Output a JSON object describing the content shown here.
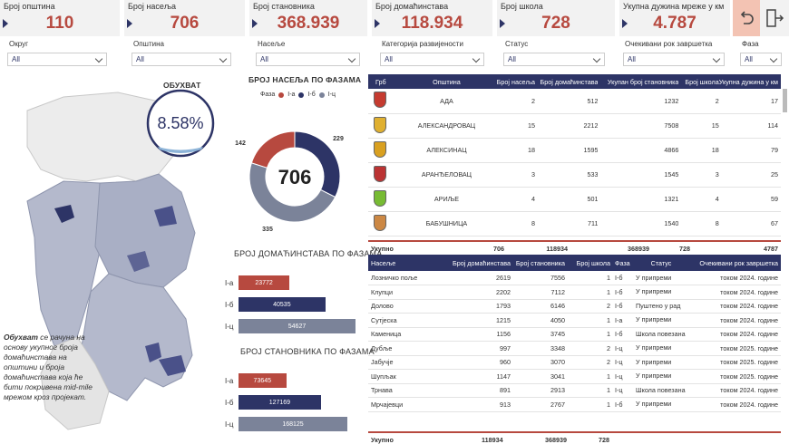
{
  "kpis": [
    {
      "label": "Број општина",
      "value": "110"
    },
    {
      "label": "Број насеља",
      "value": "706"
    },
    {
      "label": "Број становника",
      "value": "368.939"
    },
    {
      "label": "Број домаћинстава",
      "value": "118.934"
    },
    {
      "label": "Број школа",
      "value": "728"
    },
    {
      "label": "Укупна дужина мреже у км",
      "value": "4.787"
    }
  ],
  "slicers": [
    {
      "label": "Округ",
      "value": "All"
    },
    {
      "label": "Општина",
      "value": "All"
    },
    {
      "label": "Насеље",
      "value": "All"
    },
    {
      "label": "Категорија развијености",
      "value": "All"
    },
    {
      "label": "Статус",
      "value": "All"
    },
    {
      "label": "Очекивани рок завршетка",
      "value": "All"
    },
    {
      "label": "Фаза",
      "value": "All"
    }
  ],
  "coverage": {
    "title": "ОБУХВАТ",
    "value": "8.58%"
  },
  "note": {
    "bold": "Обухват",
    "text": " се рачуна на основу укупног броја домаћинстава на општини и броја домаћинстава која ће бити покривена mid-mile мрежом кроз пројекат."
  },
  "colors": {
    "Iа": "#b7493f",
    "Iб": "#2d3466",
    "Iц": "#7b8399"
  },
  "donut": {
    "title": "БРОЈ НАСЕЉА ПО ФАЗАМА",
    "legend_title": "Фаза",
    "center": "706"
  },
  "households": {
    "title": "БРОЈ ДОМАЋИНСТАВА ПО ФАЗАМА"
  },
  "population": {
    "title": "БРОЈ СТАНОВНИКА ПО ФАЗАМА"
  },
  "chart_data": [
    {
      "type": "pie",
      "title": "БРОЈ НАСЕЉА ПО ФАЗАМА",
      "categories": [
        "I-а",
        "I-б",
        "I-ц"
      ],
      "values": [
        142,
        229,
        335
      ],
      "center_label": "706"
    },
    {
      "type": "bar",
      "title": "БРОЈ ДОМАЋИНСТАВА ПО ФАЗАМА",
      "categories": [
        "I-а",
        "I-б",
        "I-ц"
      ],
      "values": [
        23772,
        40535,
        54627
      ]
    },
    {
      "type": "bar",
      "title": "БРОЈ СТАНОВНИКА ПО ФАЗАМА",
      "categories": [
        "I-а",
        "I-б",
        "I-ц"
      ],
      "values": [
        73645,
        127169,
        168125
      ]
    }
  ],
  "muni": {
    "headers": [
      "Грб",
      "Општина",
      "Број насеља",
      "Број домаћинстава",
      "Укупан број становника",
      "Број школа",
      "Укупна дужина у км"
    ],
    "rows": [
      [
        "АДА",
        "2",
        "512",
        "1232",
        "2",
        "17"
      ],
      [
        "АЛЕКСАНДРОВАЦ",
        "15",
        "2212",
        "7508",
        "15",
        "114"
      ],
      [
        "АЛЕКСИНАЦ",
        "18",
        "1595",
        "4866",
        "18",
        "79"
      ],
      [
        "АРАНЂЕЛОВАЦ",
        "3",
        "533",
        "1545",
        "3",
        "25"
      ],
      [
        "АРИЉЕ",
        "4",
        "501",
        "1321",
        "4",
        "59"
      ],
      [
        "БАБУШНИЦА",
        "8",
        "711",
        "1540",
        "8",
        "67"
      ]
    ],
    "total": [
      "Укупно",
      "706",
      "118934",
      "368939",
      "728",
      "4787"
    ]
  },
  "settle": {
    "headers": [
      "Насеље",
      "Број домаћинстава",
      "Број становника",
      "Број школа",
      "Фаза",
      "Статус",
      "Очекивани рок завршетка"
    ],
    "rows": [
      [
        "Лозничко поље",
        "2619",
        "7556",
        "1",
        "I-б",
        "У припреми",
        "током 2024. године"
      ],
      [
        "Клупци",
        "2202",
        "7112",
        "1",
        "I-б",
        "У припреми",
        "током 2024. године"
      ],
      [
        "Долово",
        "1793",
        "6146",
        "2",
        "I-б",
        "Пуштено у рад",
        "током 2024. године"
      ],
      [
        "Сутјеска",
        "1215",
        "4050",
        "1",
        "I-а",
        "У припреми",
        "током 2024. године"
      ],
      [
        "Каменица",
        "1156",
        "3745",
        "1",
        "I-б",
        "Школа повезана",
        "током 2024. године"
      ],
      [
        "Дубље",
        "997",
        "3348",
        "2",
        "I-ц",
        "У припреми",
        "током 2025. године"
      ],
      [
        "Јабучје",
        "960",
        "3070",
        "2",
        "I-ц",
        "У припреми",
        "током 2025. године"
      ],
      [
        "Шупљак",
        "1147",
        "3041",
        "1",
        "I-ц",
        "У припреми",
        "током 2025. године"
      ],
      [
        "Трнава",
        "891",
        "2913",
        "1",
        "I-ц",
        "Школа повезана",
        "током 2024. године"
      ],
      [
        "Мрчајевци",
        "913",
        "2767",
        "1",
        "I-б",
        "У припреми",
        "током 2024. године"
      ]
    ],
    "total": [
      "Укупно",
      "118934",
      "368939",
      "728"
    ]
  }
}
